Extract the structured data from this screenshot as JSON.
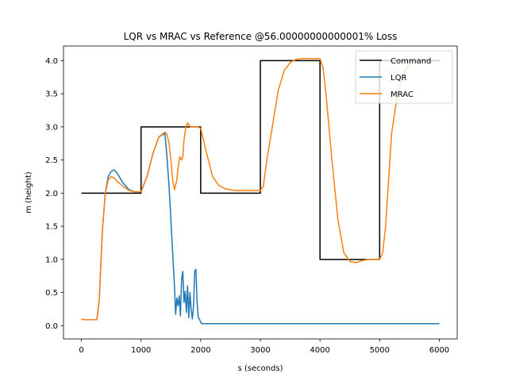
{
  "chart_data": {
    "type": "line",
    "title": "LQR vs MRAC vs Reference @56.00000000000001% Loss",
    "xlabel": "s (seconds)",
    "ylabel": "m (height)",
    "xlim": [
      -300,
      6300
    ],
    "ylim": [
      -0.2,
      4.22
    ],
    "xticks": [
      0,
      1000,
      2000,
      3000,
      4000,
      5000,
      6000
    ],
    "xtick_labels": [
      "0",
      "1000",
      "2000",
      "3000",
      "4000",
      "5000",
      "6000"
    ],
    "yticks": [
      0.0,
      0.5,
      1.0,
      1.5,
      2.0,
      2.5,
      3.0,
      3.5,
      4.0
    ],
    "ytick_labels": [
      "0.0",
      "0.5",
      "1.0",
      "1.5",
      "2.0",
      "2.5",
      "3.0",
      "3.5",
      "4.0"
    ],
    "grid": false,
    "legend_position": "top-right",
    "series": [
      {
        "name": "Command",
        "color": "#000000",
        "x": [
          0,
          1000,
          1000,
          2000,
          2000,
          3000,
          3000,
          4000,
          4000,
          5000,
          5000,
          6000
        ],
        "y": [
          2.0,
          2.0,
          3.0,
          3.0,
          2.0,
          2.0,
          4.0,
          4.0,
          1.0,
          1.0,
          4.0,
          4.0
        ]
      },
      {
        "name": "LQR",
        "color": "#1f77b4",
        "x": [
          0,
          50,
          100,
          200,
          260,
          300,
          350,
          400,
          450,
          500,
          550,
          600,
          700,
          800,
          900,
          1000,
          1100,
          1200,
          1300,
          1400,
          1430,
          1470,
          1500,
          1530,
          1560,
          1580,
          1600,
          1620,
          1640,
          1660,
          1680,
          1700,
          1720,
          1740,
          1760,
          1780,
          1800,
          1820,
          1840,
          1860,
          1880,
          1900,
          1920,
          1940,
          1960,
          1980,
          2000,
          2020,
          2040,
          2060,
          6000
        ],
        "y": [
          0.1,
          0.09,
          0.09,
          0.09,
          0.09,
          0.4,
          1.4,
          2.0,
          2.25,
          2.33,
          2.35,
          2.3,
          2.15,
          2.05,
          2.02,
          2.02,
          2.25,
          2.6,
          2.85,
          2.9,
          2.6,
          2.1,
          1.6,
          1.1,
          0.6,
          0.17,
          0.42,
          0.3,
          0.45,
          0.15,
          0.7,
          0.82,
          0.35,
          0.52,
          0.2,
          0.6,
          0.12,
          0.5,
          0.25,
          0.1,
          0.3,
          0.82,
          0.85,
          0.35,
          0.12,
          0.1,
          0.05,
          0.03,
          0.03,
          0.03,
          0.03
        ]
      },
      {
        "name": "MRAC",
        "color": "#ff7f0e",
        "x": [
          0,
          50,
          100,
          200,
          260,
          300,
          350,
          400,
          450,
          500,
          550,
          600,
          700,
          800,
          900,
          1000,
          1100,
          1200,
          1300,
          1400,
          1430,
          1470,
          1500,
          1530,
          1560,
          1600,
          1630,
          1650,
          1680,
          1700,
          1720,
          1750,
          1780,
          1800,
          1830,
          1860,
          1900,
          1950,
          2000,
          2100,
          2200,
          2300,
          2400,
          2500,
          2600,
          2800,
          3000,
          3050,
          3100,
          3200,
          3300,
          3400,
          3500,
          3600,
          3700,
          3800,
          3900,
          4000,
          4050,
          4100,
          4200,
          4300,
          4400,
          4500,
          4600,
          4700,
          4800,
          4900,
          5000,
          5050,
          5100,
          5150,
          5200,
          5300,
          5400,
          5500,
          5600
        ],
        "y": [
          0.1,
          0.09,
          0.09,
          0.09,
          0.09,
          0.4,
          1.4,
          2.0,
          2.2,
          2.25,
          2.23,
          2.18,
          2.1,
          2.04,
          2.02,
          2.02,
          2.25,
          2.6,
          2.85,
          2.92,
          2.9,
          2.75,
          2.5,
          2.2,
          2.05,
          2.2,
          2.45,
          2.55,
          2.5,
          2.55,
          2.8,
          3.0,
          3.06,
          3.03,
          3.0,
          3.0,
          3.0,
          3.0,
          2.98,
          2.6,
          2.25,
          2.12,
          2.07,
          2.05,
          2.04,
          2.04,
          2.04,
          2.1,
          2.45,
          3.0,
          3.55,
          3.85,
          3.97,
          4.02,
          4.03,
          4.03,
          4.03,
          4.03,
          3.9,
          3.5,
          2.5,
          1.6,
          1.1,
          0.97,
          0.95,
          0.98,
          1.0,
          1.0,
          1.0,
          1.1,
          1.5,
          2.2,
          2.9,
          3.5,
          3.8,
          3.97,
          4.02
        ]
      }
    ]
  }
}
